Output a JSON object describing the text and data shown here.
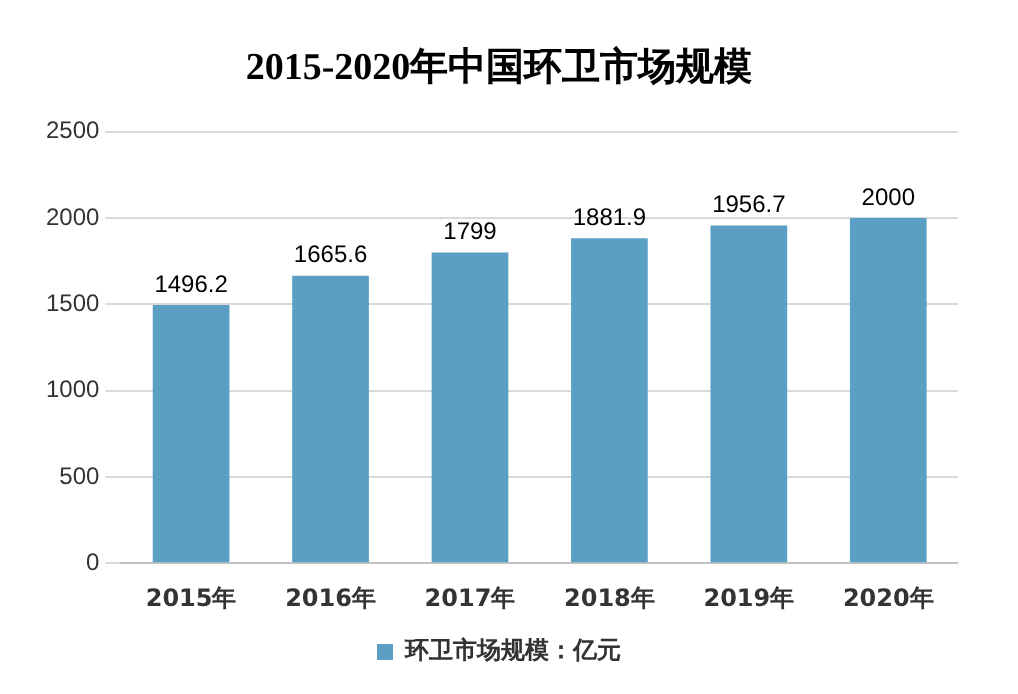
{
  "chart_data": {
    "type": "bar",
    "title": "2015-2020年中国环卫市场规模",
    "categories": [
      "2015年",
      "2016年",
      "2017年",
      "2018年",
      "2019年",
      "2020年"
    ],
    "series": [
      {
        "name": "环卫市场规模：亿元",
        "color": "#5b9fc4",
        "values": [
          1496.2,
          1665.6,
          1799,
          1881.9,
          1956.7,
          2000
        ]
      }
    ],
    "ylim": [
      0,
      2500
    ],
    "yticks": [
      0,
      500,
      1000,
      1500,
      2000,
      2500
    ],
    "grid": "y",
    "legend": "bottom",
    "data_labels": true
  }
}
